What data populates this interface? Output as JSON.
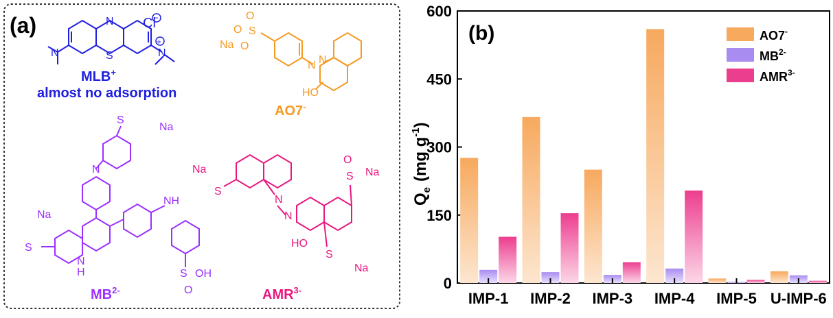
{
  "panel_a": {
    "label": "(a)",
    "mlb": {
      "name": "MLB",
      "charge": "+",
      "note": "almost no adsorption",
      "counterion": "Cl",
      "color": "#1f1fe0",
      "atoms": {
        "n_top": "N",
        "s": "S",
        "n_right": "N",
        "n_left": "N"
      }
    },
    "ao7": {
      "name": "AO7",
      "charge": "-",
      "color": "#f59a23",
      "atoms": {
        "na": "Na",
        "s": "S",
        "o1": "O",
        "o2": "O",
        "o3": "O",
        "n1": "N",
        "n2": "N",
        "ho": "HO"
      }
    },
    "mb": {
      "name": "MB",
      "charge": "2-",
      "color": "#9b30ff",
      "atoms": {
        "na1": "Na",
        "na2": "Na",
        "s1": "S",
        "s2": "S",
        "s3": "S",
        "n_imine": "N",
        "nh1": "NH",
        "nh2": "N",
        "h": "H",
        "oh": "OH",
        "o": "O"
      }
    },
    "amr": {
      "name": "AMR",
      "charge": "3-",
      "color": "#e8177f",
      "atoms": {
        "na1": "Na",
        "na2": "Na",
        "na3": "Na",
        "s1": "S",
        "s2": "S",
        "s3": "S",
        "n1": "N",
        "n2": "N",
        "ho": "HO",
        "o": "O"
      }
    }
  },
  "panel_b": {
    "label": "(b)"
  },
  "colors": {
    "ao7_top": "#f7a95e",
    "ao7_bottom": "#fde6d0",
    "mb_top": "#a98cf0",
    "mb_bottom": "#e8e0ff",
    "amr_top": "#ec3e8f",
    "amr_bottom": "#fcd7e8"
  },
  "chart_data": {
    "type": "bar",
    "ylabel": "Q",
    "ylabel_sub": "e",
    "ylabel_unit": "(mg g",
    "ylabel_unit_sup": "-1",
    "ylabel_unit_close": ")",
    "ylim": [
      0,
      600
    ],
    "yticks": [
      0,
      150,
      300,
      450,
      600
    ],
    "categories": [
      "IMP-1",
      "IMP-2",
      "IMP-3",
      "IMP-4",
      "IMP-5",
      "U-IMP-6"
    ],
    "series": [
      {
        "name": "AO7",
        "sup": "-",
        "values": [
          276,
          366,
          250,
          560,
          10,
          26
        ]
      },
      {
        "name": "MB",
        "sup": "2-",
        "values": [
          29,
          24,
          18,
          32,
          3,
          17
        ]
      },
      {
        "name": "AMR",
        "sup": "3-",
        "values": [
          102,
          154,
          46,
          204,
          7,
          5
        ]
      }
    ],
    "legend_position": "top-right",
    "grid": false
  }
}
